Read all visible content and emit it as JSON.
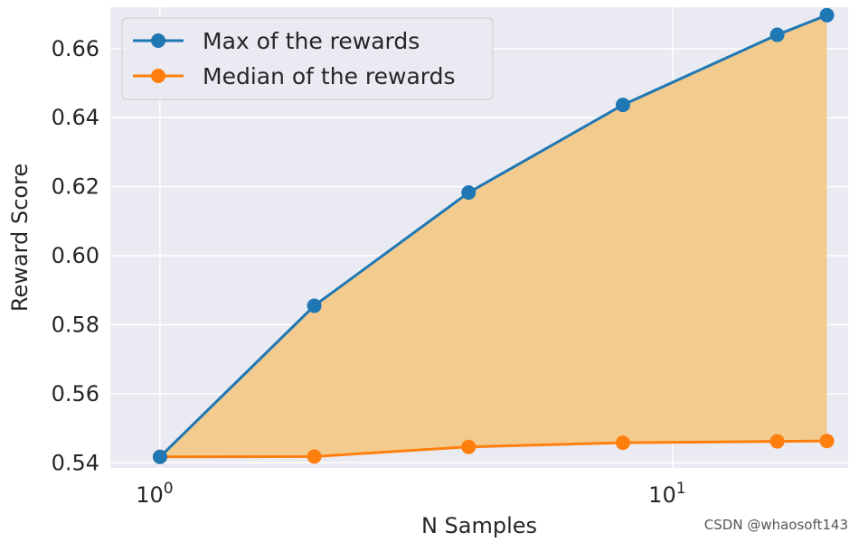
{
  "chart_data": {
    "type": "line",
    "xscale": "log",
    "x": [
      1,
      2,
      4,
      8,
      16,
      20
    ],
    "xlim": [
      0.8,
      22
    ],
    "ylim": [
      0.5385,
      0.672
    ],
    "xticks": [
      {
        "value": 1,
        "base": "10",
        "exp": "0"
      },
      {
        "value": 10,
        "base": "10",
        "exp": "1"
      }
    ],
    "yticks": [
      {
        "value": 0.54,
        "label": "0.54"
      },
      {
        "value": 0.56,
        "label": "0.56"
      },
      {
        "value": 0.58,
        "label": "0.58"
      },
      {
        "value": 0.6,
        "label": "0.60"
      },
      {
        "value": 0.62,
        "label": "0.62"
      },
      {
        "value": 0.64,
        "label": "0.64"
      },
      {
        "value": 0.66,
        "label": "0.66"
      }
    ],
    "xlabel": "N Samples",
    "ylabel": "Reward Score",
    "grid": true,
    "legend_position": "top-left",
    "fill_between": {
      "color": "#f5c57e",
      "between": [
        "Max of the rewards",
        "Median of the rewards"
      ]
    },
    "series": [
      {
        "name": "Max of the rewards",
        "color": "#1f77b4",
        "values": [
          0.5417,
          0.5855,
          0.6183,
          0.6437,
          0.664,
          0.6697
        ]
      },
      {
        "name": "Median of the rewards",
        "color": "#ff7f0e",
        "values": [
          0.5417,
          0.5418,
          0.5446,
          0.5458,
          0.5462,
          0.5463
        ]
      }
    ]
  },
  "watermark": "CSDN @whaosoft143"
}
